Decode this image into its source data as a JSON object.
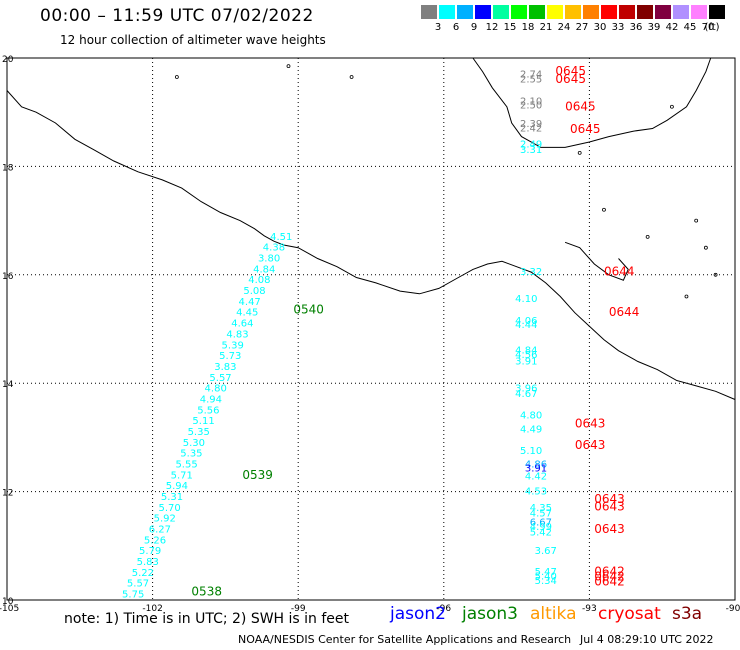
{
  "header": {
    "title": "00:00 – 11:59 UTC 07/02/2022",
    "subtitle": "12 hour collection of altimeter wave heights"
  },
  "legend": {
    "colors": [
      "#808080",
      "#00ffff",
      "#00b0ff",
      "#0000ff",
      "#00ffa0",
      "#00ff00",
      "#00c000",
      "#ffff00",
      "#ffc000",
      "#ff8000",
      "#ff0000",
      "#c00000",
      "#800000",
      "#800040",
      "#b090ff",
      "#ff80ff",
      "#000000"
    ],
    "labels": [
      "3",
      "6",
      "9",
      "12",
      "15",
      "18",
      "21",
      "24",
      "27",
      "30",
      "33",
      "36",
      "39",
      "42",
      "45",
      "70",
      "(ft)"
    ]
  },
  "axes": {
    "lat_labels": [
      "20",
      "18",
      "16",
      "14",
      "12",
      "10"
    ],
    "lon_labels": [
      "-105",
      "-102",
      "-99",
      "-96",
      "-93",
      "-90"
    ]
  },
  "chart_data": {
    "type": "scatter",
    "xlim": [
      -105,
      -90
    ],
    "ylim": [
      10,
      20
    ],
    "gridlines": {
      "lon": [
        -102,
        -99,
        -96,
        -93
      ],
      "lat": [
        12,
        14,
        16,
        18
      ]
    },
    "tracks": [
      {
        "name": "jason3",
        "points": [
          {
            "lon": -99.35,
            "lat": 16.7,
            "v": "4.51"
          },
          {
            "lon": -99.5,
            "lat": 16.5,
            "v": "4.38"
          },
          {
            "lon": -99.6,
            "lat": 16.3,
            "v": "3.80"
          },
          {
            "lon": -99.7,
            "lat": 16.1,
            "v": "4.84"
          },
          {
            "lon": -99.8,
            "lat": 15.9,
            "v": "4.08"
          },
          {
            "lon": -99.9,
            "lat": 15.7,
            "v": "5.08"
          },
          {
            "lon": -100.0,
            "lat": 15.5,
            "v": "4.47"
          },
          {
            "lon": -100.05,
            "lat": 15.3,
            "v": "4.45"
          },
          {
            "lon": -100.15,
            "lat": 15.1,
            "v": "4.64"
          },
          {
            "lon": -100.25,
            "lat": 14.9,
            "v": "4.83"
          },
          {
            "lon": -100.35,
            "lat": 14.7,
            "v": "5.39"
          },
          {
            "lon": -100.4,
            "lat": 14.5,
            "v": "5.73"
          },
          {
            "lon": -100.5,
            "lat": 14.3,
            "v": "3.83"
          },
          {
            "lon": -100.6,
            "lat": 14.1,
            "v": "5.57"
          },
          {
            "lon": -100.7,
            "lat": 13.9,
            "v": "4.80"
          },
          {
            "lon": -100.8,
            "lat": 13.7,
            "v": "4.94"
          },
          {
            "lon": -100.85,
            "lat": 13.5,
            "v": "5.56"
          },
          {
            "lon": -100.95,
            "lat": 13.3,
            "v": "5.11"
          },
          {
            "lon": -101.05,
            "lat": 13.1,
            "v": "5.35"
          },
          {
            "lon": -101.15,
            "lat": 12.9,
            "v": "5.30"
          },
          {
            "lon": -101.2,
            "lat": 12.7,
            "v": "5.35"
          },
          {
            "lon": -101.3,
            "lat": 12.5,
            "v": "5.55"
          },
          {
            "lon": -101.4,
            "lat": 12.3,
            "v": "5.71"
          },
          {
            "lon": -101.5,
            "lat": 12.1,
            "v": "5.94"
          },
          {
            "lon": -101.6,
            "lat": 11.9,
            "v": "5.31"
          },
          {
            "lon": -101.65,
            "lat": 11.7,
            "v": "5.70"
          },
          {
            "lon": -101.75,
            "lat": 11.5,
            "v": "5.92"
          },
          {
            "lon": -101.85,
            "lat": 11.3,
            "v": "6.27"
          },
          {
            "lon": -101.95,
            "lat": 11.1,
            "v": "5.26"
          },
          {
            "lon": -102.05,
            "lat": 10.9,
            "v": "5.79"
          },
          {
            "lon": -102.1,
            "lat": 10.7,
            "v": "5.83"
          },
          {
            "lon": -102.2,
            "lat": 10.5,
            "v": "5.22"
          },
          {
            "lon": -102.3,
            "lat": 10.3,
            "v": "5.57"
          },
          {
            "lon": -102.4,
            "lat": 10.1,
            "v": "5.75"
          }
        ],
        "times": [
          {
            "lon": -99.1,
            "lat": 15.35,
            "t": "0540"
          },
          {
            "lon": -100.15,
            "lat": 12.3,
            "t": "0539"
          },
          {
            "lon": -101.2,
            "lat": 10.15,
            "t": "0538"
          }
        ]
      },
      {
        "name": "cryosat",
        "points": [
          {
            "lon": -94.2,
            "lat": 19.7,
            "v": "2.74",
            "c": "#808080"
          },
          {
            "lon": -94.2,
            "lat": 19.6,
            "v": "2.55",
            "c": "#808080"
          },
          {
            "lon": -94.2,
            "lat": 19.2,
            "v": "2.10",
            "c": "#808080"
          },
          {
            "lon": -94.2,
            "lat": 19.12,
            "v": "2.50",
            "c": "#808080"
          },
          {
            "lon": -94.2,
            "lat": 18.78,
            "v": "2.39",
            "c": "#808080"
          },
          {
            "lon": -94.2,
            "lat": 18.7,
            "v": "2.42",
            "c": "#808080"
          },
          {
            "lon": -94.2,
            "lat": 18.4,
            "v": "2.49",
            "c": "#00ffff"
          },
          {
            "lon": -94.2,
            "lat": 18.3,
            "v": "3.31",
            "c": "#00ffff"
          },
          {
            "lon": -94.2,
            "lat": 16.05,
            "v": "3.32",
            "c": "#00ffff"
          },
          {
            "lon": -94.3,
            "lat": 15.55,
            "v": "4.10",
            "c": "#00ffff"
          },
          {
            "lon": -94.3,
            "lat": 15.15,
            "v": "4.06",
            "c": "#00ffff"
          },
          {
            "lon": -94.3,
            "lat": 15.07,
            "v": "4.44",
            "c": "#00ffff"
          },
          {
            "lon": -94.3,
            "lat": 14.6,
            "v": "4.84",
            "c": "#00ffff"
          },
          {
            "lon": -94.3,
            "lat": 14.52,
            "v": "4.56",
            "c": "#00ffff"
          },
          {
            "lon": -94.3,
            "lat": 14.4,
            "v": "3.91",
            "c": "#00ffff"
          },
          {
            "lon": -94.3,
            "lat": 13.9,
            "v": "3.96",
            "c": "#00ffff"
          },
          {
            "lon": -94.3,
            "lat": 13.8,
            "v": "4.67",
            "c": "#00ffff"
          },
          {
            "lon": -94.2,
            "lat": 13.4,
            "v": "4.80",
            "c": "#00ffff"
          },
          {
            "lon": -94.2,
            "lat": 13.15,
            "v": "4.49",
            "c": "#00ffff"
          },
          {
            "lon": -94.2,
            "lat": 12.75,
            "v": "5.10",
            "c": "#00ffff"
          },
          {
            "lon": -94.1,
            "lat": 12.5,
            "v": "4.86",
            "c": "#00b0ff"
          },
          {
            "lon": -94.1,
            "lat": 12.43,
            "v": "3.91",
            "c": "#0000ff"
          },
          {
            "lon": -94.1,
            "lat": 12.28,
            "v": "4.42",
            "c": "#00ffff"
          },
          {
            "lon": -94.1,
            "lat": 12.0,
            "v": "4.53",
            "c": "#00ffff"
          },
          {
            "lon": -94.0,
            "lat": 11.7,
            "v": "4.35",
            "c": "#00ffff"
          },
          {
            "lon": -94.0,
            "lat": 11.6,
            "v": "4.57",
            "c": "#00ffff"
          },
          {
            "lon": -94.0,
            "lat": 11.43,
            "v": "6.67",
            "c": "#00b0ff"
          },
          {
            "lon": -94.0,
            "lat": 11.35,
            "v": "4.99",
            "c": "#00ffff"
          },
          {
            "lon": -94.0,
            "lat": 11.25,
            "v": "5.42",
            "c": "#00ffff"
          },
          {
            "lon": -93.9,
            "lat": 10.9,
            "v": "3.67",
            "c": "#00ffff"
          },
          {
            "lon": -93.9,
            "lat": 10.52,
            "v": "5.47",
            "c": "#00ffff"
          },
          {
            "lon": -93.9,
            "lat": 10.43,
            "v": "5.40",
            "c": "#00ffff"
          },
          {
            "lon": -93.9,
            "lat": 10.35,
            "v": "5.34",
            "c": "#00ffff"
          }
        ],
        "times": [
          {
            "lon": -93.7,
            "lat": 19.75,
            "t": "0645"
          },
          {
            "lon": -93.7,
            "lat": 19.6,
            "t": "0645"
          },
          {
            "lon": -93.5,
            "lat": 19.1,
            "t": "0645"
          },
          {
            "lon": -93.4,
            "lat": 18.68,
            "t": "0645"
          },
          {
            "lon": -92.7,
            "lat": 16.05,
            "t": "0644"
          },
          {
            "lon": -92.6,
            "lat": 15.3,
            "t": "0644"
          },
          {
            "lon": -93.3,
            "lat": 13.25,
            "t": "0643"
          },
          {
            "lon": -93.3,
            "lat": 12.85,
            "t": "0643"
          },
          {
            "lon": -92.9,
            "lat": 11.85,
            "t": "0643"
          },
          {
            "lon": -92.9,
            "lat": 11.72,
            "t": "0643"
          },
          {
            "lon": -92.9,
            "lat": 11.3,
            "t": "0643"
          },
          {
            "lon": -92.9,
            "lat": 10.52,
            "t": "0642"
          },
          {
            "lon": -92.9,
            "lat": 10.42,
            "t": "0642"
          },
          {
            "lon": -92.9,
            "lat": 10.33,
            "t": "0642"
          }
        ]
      }
    ]
  },
  "footer": {
    "note": "note:  1) Time is in UTC;  2) SWH is in feet",
    "satellites": [
      {
        "name": "jason2",
        "color": "#0000ff"
      },
      {
        "name": "jason3",
        "color": "#008000"
      },
      {
        "name": "altika",
        "color": "#ff9900"
      },
      {
        "name": "cryosat",
        "color": "#ff0000"
      },
      {
        "name": "s3a",
        "color": "#800000"
      }
    ],
    "credit": "NOAA/NESDIS Center for Satellite Applications and Research",
    "timestamp": "Jul  4 08:29:10 UTC 2022"
  }
}
